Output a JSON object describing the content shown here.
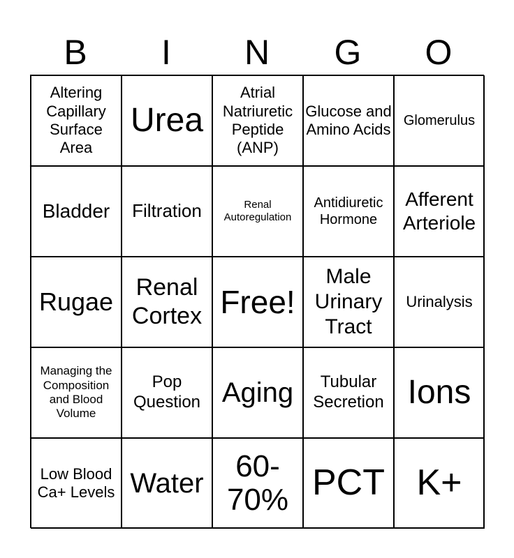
{
  "header": [
    "B",
    "I",
    "N",
    "G",
    "O"
  ],
  "cells": [
    "Altering Capillary Surface Area",
    "Urea",
    "Atrial Natriuretic Peptide (ANP)",
    "Glucose and Amino Acids",
    "Glomerulus",
    "Bladder",
    "Filtration",
    "Renal Autoregulation",
    "Antidiuretic Hormone",
    "Afferent Arteriole",
    "Rugae",
    "Renal Cortex",
    "Free!",
    "Male Urinary Tract",
    "Urinalysis",
    "Managing the Composition and Blood Volume",
    "Pop Question",
    "Aging",
    "Tubular Secretion",
    "Ions",
    "Low Blood Ca+ Levels",
    "Water",
    "60-70%",
    "PCT",
    "K+"
  ]
}
